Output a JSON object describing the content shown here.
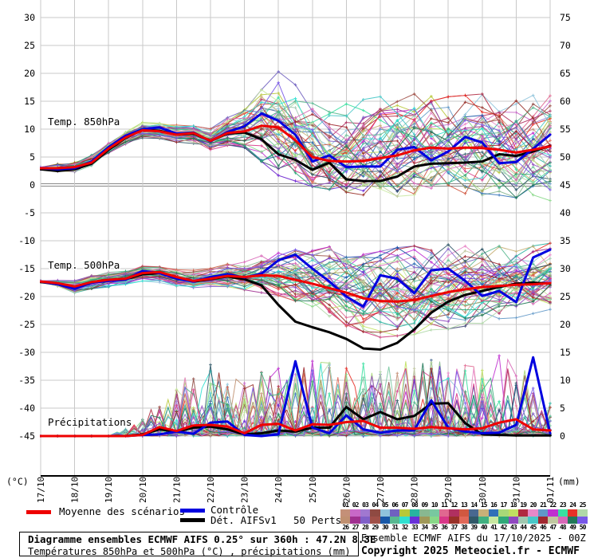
{
  "chart_data": {
    "type": "line",
    "title": "Diagramme ensembles ECMWF AIFS",
    "x_labels": [
      "17/10",
      "18/10",
      "19/10",
      "20/10",
      "21/10",
      "22/10",
      "23/10",
      "24/10",
      "25/10",
      "26/10",
      "27/10",
      "28/10",
      "29/10",
      "30/10",
      "31/10",
      "01/11"
    ],
    "x_step_days": 0.5,
    "temp_axis": {
      "min": -45,
      "max": 30,
      "step": 5,
      "unit": "(°C)"
    },
    "precip_axis": {
      "min": 0,
      "max": 75,
      "step": 5,
      "unit": "(mm)"
    },
    "n_members": 50,
    "grid": true,
    "panels": [
      {
        "label": "Temp. 850hPa",
        "unit": "°C",
        "mean": [
          3.0,
          3.0,
          3.2,
          4.0,
          6.5,
          8.5,
          9.8,
          9.6,
          9.0,
          9.3,
          7.9,
          9.3,
          9.6,
          10.6,
          10.3,
          8.0,
          5.0,
          4.3,
          4.2,
          4.3,
          4.8,
          5.3,
          6.2,
          6.7,
          6.5,
          6.7,
          6.6,
          6.3,
          5.8,
          6.3,
          6.9
        ],
        "control": [
          3.0,
          2.8,
          3.0,
          4.2,
          6.8,
          8.8,
          10.0,
          10.3,
          9.2,
          9.4,
          7.8,
          9.5,
          10.5,
          12.8,
          11.5,
          9.0,
          4.2,
          5.3,
          3.2,
          3.3,
          3.3,
          6.3,
          6.8,
          4.4,
          6.0,
          8.6,
          7.6,
          3.9,
          4.1,
          6.5,
          9.0
        ],
        "det": [
          2.8,
          2.5,
          2.8,
          3.8,
          6.3,
          8.4,
          9.9,
          9.7,
          9.0,
          9.2,
          7.9,
          9.2,
          9.4,
          8.2,
          5.5,
          4.5,
          2.7,
          4.0,
          1.0,
          0.7,
          0.7,
          1.5,
          3.3,
          3.8,
          3.9,
          4.0,
          4.2,
          5.5,
          5.2,
          6.0,
          7.0
        ],
        "spread_min": [
          2.2,
          2.0,
          5.5,
          8.5,
          7.5,
          6.5,
          7.0,
          2.0,
          0.0,
          -1.0,
          -2.0,
          -1.5,
          -1.0,
          -1.5,
          -2.0,
          -2.5
        ],
        "spread_max": [
          3.8,
          4.5,
          7.5,
          11.0,
          10.5,
          10.0,
          13.5,
          20.0,
          17.5,
          15.0,
          16.5,
          16.0,
          15.5,
          16.0,
          15.5,
          16.0
        ]
      },
      {
        "label": "Temp. 500hPa",
        "unit": "°C",
        "mean": [
          -17.3,
          -17.6,
          -18.2,
          -17.4,
          -17.0,
          -16.8,
          -15.8,
          -15.6,
          -16.5,
          -17.2,
          -16.8,
          -16.3,
          -16.5,
          -16.2,
          -16.3,
          -17.0,
          -17.7,
          -18.5,
          -19.3,
          -20.3,
          -20.8,
          -20.9,
          -20.6,
          -19.9,
          -19.2,
          -18.7,
          -18.3,
          -18.1,
          -17.9,
          -17.8,
          -17.6
        ],
        "control": [
          -17.3,
          -17.8,
          -18.6,
          -17.5,
          -17.2,
          -17.0,
          -15.4,
          -15.8,
          -16.8,
          -17.3,
          -16.5,
          -16.0,
          -16.6,
          -15.9,
          -13.5,
          -12.5,
          -15.0,
          -17.3,
          -20.0,
          -21.8,
          -16.2,
          -16.8,
          -19.4,
          -15.3,
          -15.0,
          -17.2,
          -19.9,
          -19.0,
          -21.0,
          -13.0,
          -11.6
        ],
        "det": [
          -17.4,
          -17.8,
          -18.4,
          -17.5,
          -17.1,
          -16.9,
          -16.0,
          -15.8,
          -16.6,
          -17.3,
          -16.9,
          -16.4,
          -16.9,
          -18.0,
          -21.5,
          -24.5,
          -25.5,
          -26.4,
          -27.6,
          -29.3,
          -29.5,
          -28.3,
          -25.9,
          -22.9,
          -20.9,
          -19.7,
          -19.0,
          -18.3,
          -17.7,
          -17.5,
          -17.7
        ],
        "spread_min": [
          -17.8,
          -19.5,
          -18.0,
          -17.0,
          -18.5,
          -18.0,
          -18.5,
          -19.5,
          -21.5,
          -25.0,
          -27.0,
          -26.5,
          -25.5,
          -24.5,
          -23.5,
          -22.0
        ],
        "spread_max": [
          -16.8,
          -17.0,
          -15.5,
          -14.5,
          -15.5,
          -15.0,
          -14.0,
          -12.0,
          -11.5,
          -11.0,
          -11.5,
          -11.0,
          -11.0,
          -11.5,
          -11.0,
          -10.5
        ]
      },
      {
        "label": "Précipitations",
        "unit": "mm",
        "mean": [
          0,
          0,
          0,
          0,
          0,
          0,
          0.2,
          1.6,
          0.9,
          1.9,
          2.0,
          1.7,
          0.5,
          2.0,
          2.2,
          1.0,
          2.1,
          2.0,
          2.5,
          2.7,
          1.5,
          1.5,
          1.3,
          1.6,
          1.4,
          1.2,
          1.4,
          2.4,
          3.0,
          1.2,
          1.0
        ],
        "control": [
          0,
          0,
          0,
          0,
          0,
          0,
          0.2,
          0.3,
          0.8,
          0.4,
          2.4,
          2.6,
          0.2,
          0,
          0.3,
          13.4,
          1.5,
          0.5,
          3.7,
          1.2,
          0.6,
          1.0,
          1.0,
          6.4,
          1.5,
          0.8,
          0.5,
          0.6,
          2.0,
          14.1,
          0.5
        ],
        "det": [
          0,
          0,
          0,
          0,
          0,
          0,
          0.3,
          1.2,
          0.8,
          1.5,
          1.7,
          1.2,
          0.3,
          0.5,
          1.0,
          0.8,
          1.5,
          1.5,
          5.2,
          3.0,
          4.3,
          3.0,
          3.6,
          5.8,
          5.9,
          2.3,
          0.3,
          0.2,
          0.1,
          0.1,
          0.1
        ],
        "spread_max": [
          0,
          0,
          0,
          3,
          10,
          13,
          10,
          13,
          14,
          14,
          12,
          15,
          13,
          13,
          17,
          6
        ]
      }
    ]
  },
  "legend": {
    "mean_label": "Moyenne des scénarios",
    "mean_color": "#ee0000",
    "control_label": "Contrôle",
    "control_color": "#0000e0",
    "det_label": "Dét. AIFSv1",
    "det_color": "#000000",
    "perts_label": "50 Perts."
  },
  "perturbation_strip": {
    "top_ids": [
      "01",
      "02",
      "03",
      "04",
      "05",
      "06",
      "07",
      "08",
      "09",
      "10",
      "11",
      "12",
      "13",
      "14",
      "15",
      "16",
      "17",
      "18",
      "19",
      "20",
      "21",
      "22",
      "23",
      "24",
      "25"
    ],
    "bottom_ids": [
      "26",
      "27",
      "28",
      "29",
      "30",
      "31",
      "32",
      "33",
      "34",
      "35",
      "36",
      "37",
      "38",
      "39",
      "40",
      "41",
      "42",
      "43",
      "44",
      "45",
      "46",
      "47",
      "48",
      "49",
      "50"
    ],
    "top_colors": [
      "#c49078",
      "#c868c8",
      "#a078d0",
      "#8f4a42",
      "#90c4dc",
      "#7060c0",
      "#b8c838",
      "#28b4a0",
      "#88b890",
      "#78c8a0",
      "#e06890",
      "#b03060",
      "#d05840",
      "#486890",
      "#c8b078",
      "#3070b8",
      "#a8d878",
      "#c0e060",
      "#b02840",
      "#e888c8",
      "#6098c8",
      "#c030d0",
      "#38e0a0",
      "#e83028",
      "#b0d8a8"
    ],
    "bottom_colors": [
      "#c09070",
      "#a03090",
      "#8060c8",
      "#a05048",
      "#1858a8",
      "#58b890",
      "#30e0d0",
      "#6830d8",
      "#a09858",
      "#88d888",
      "#d83888",
      "#983028",
      "#e06858",
      "#305868",
      "#40b080",
      "#c8e8a0",
      "#30a878",
      "#9048c0",
      "#a0c8b0",
      "#48c8c8",
      "#a02830",
      "#c0c8a0",
      "#d868b8",
      "#207858",
      "#7858e8"
    ]
  },
  "footer": {
    "title_line1": "Diagramme ensembles ECMWF AIFS 0.25° sur 360h : 47.2N 8.3E",
    "title_line2": "Températures 850hPa et 500hPa (°C) , précipitations (mm)",
    "right_line1": "Ensemble ECMWF AIFS du 17/10/2025 - 00Z",
    "right_line2": "Copyright 2025 Meteociel.fr - ECMWF"
  },
  "colors": {
    "grid": "#c8c8c8",
    "zero_line": "#888888",
    "axis": "#000000",
    "background": "#ffffff"
  }
}
